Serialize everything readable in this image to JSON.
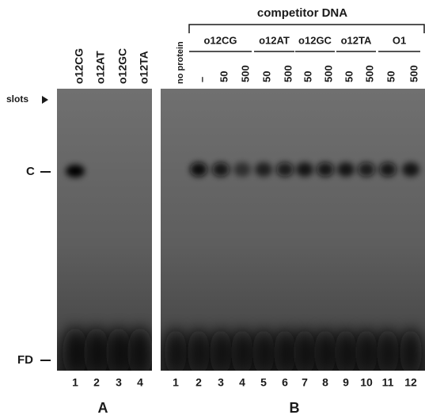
{
  "axis_labels": {
    "slots": "slots",
    "complex": "C",
    "free_dna": "FD"
  },
  "panel_a": {
    "label": "A",
    "lanes": [
      {
        "number": "1",
        "probe": "o12CG"
      },
      {
        "number": "2",
        "probe": "o12AT"
      },
      {
        "number": "3",
        "probe": "o12GC"
      },
      {
        "number": "4",
        "probe": "o12TA"
      }
    ]
  },
  "panel_b": {
    "label": "B",
    "title": "competitor DNA",
    "no_protein": "no protein",
    "groups": [
      {
        "name": "o12CG",
        "amounts": [
          "–",
          "50",
          "500"
        ]
      },
      {
        "name": "o12AT",
        "amounts": [
          "50",
          "500"
        ]
      },
      {
        "name": "o12GC",
        "amounts": [
          "50",
          "500"
        ]
      },
      {
        "name": "o12TA",
        "amounts": [
          "50",
          "500"
        ]
      },
      {
        "name": "O1",
        "amounts": [
          "50",
          "500"
        ]
      }
    ],
    "lane_numbers": [
      "1",
      "2",
      "3",
      "4",
      "5",
      "6",
      "7",
      "8",
      "9",
      "10",
      "11",
      "12"
    ]
  }
}
